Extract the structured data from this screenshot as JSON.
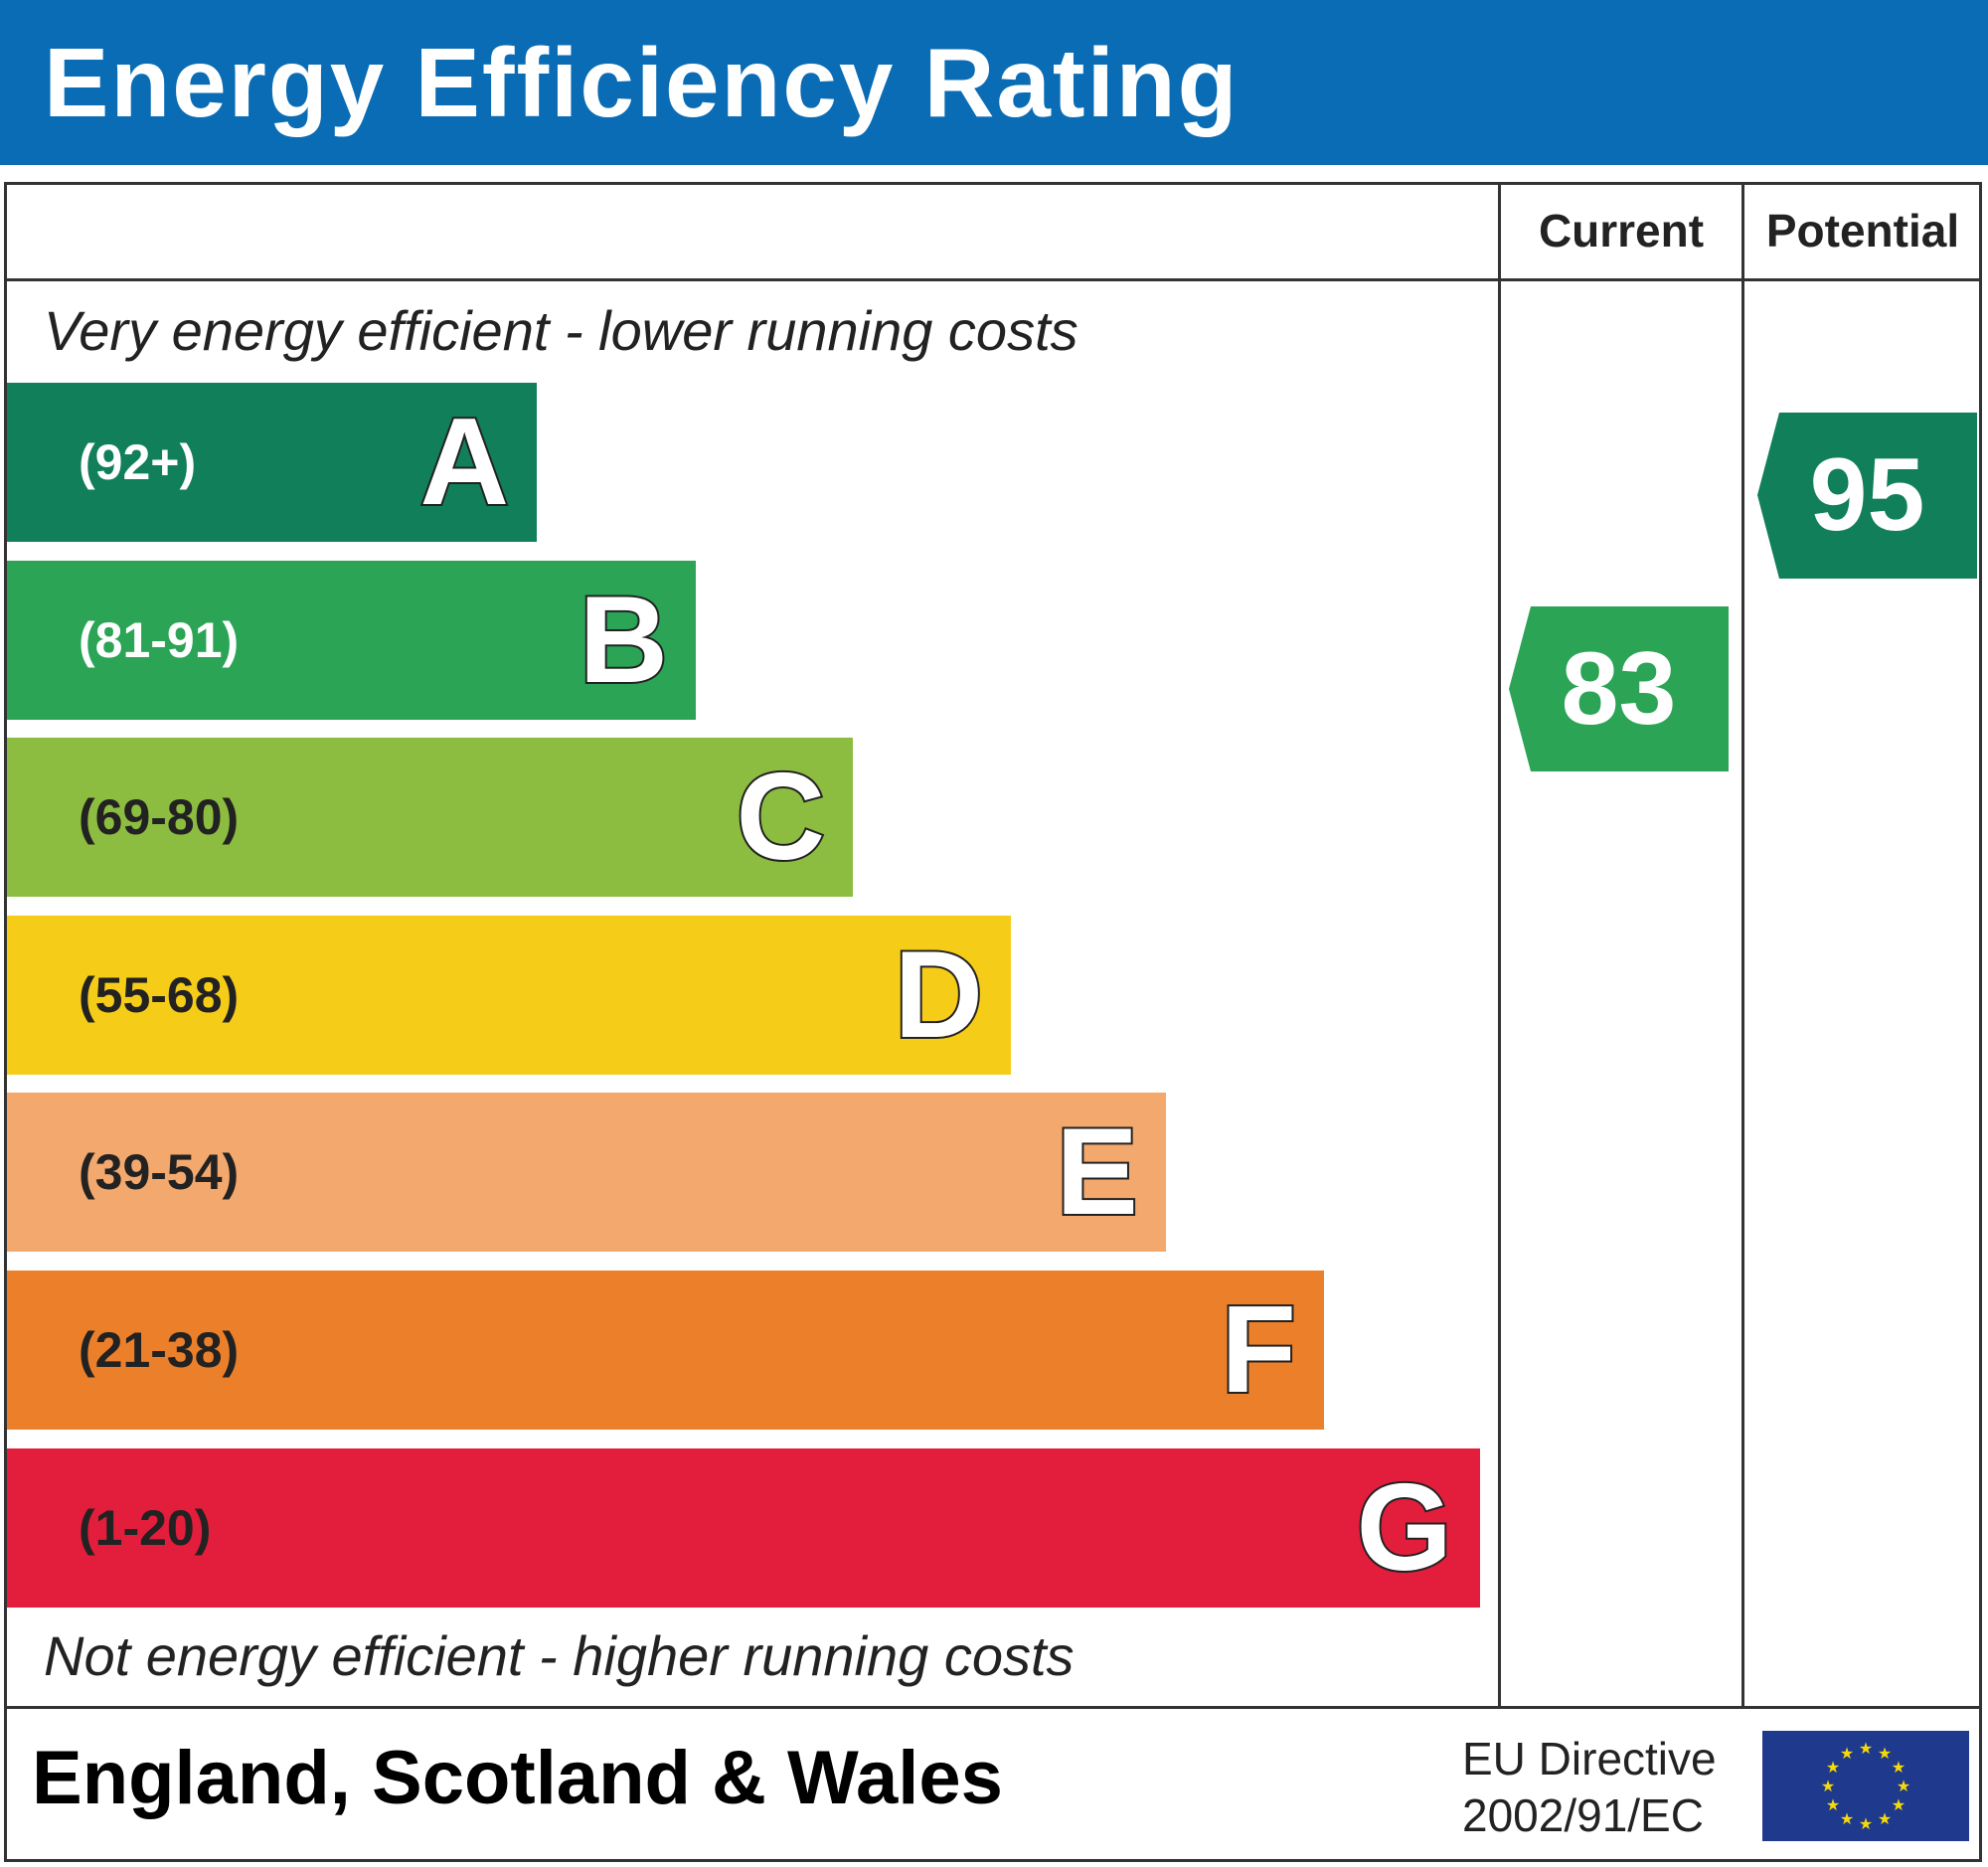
{
  "header": {
    "title": "Energy Efficiency Rating"
  },
  "columns": {
    "current": "Current",
    "potential": "Potential"
  },
  "notes": {
    "top": "Very energy efficient - lower running costs",
    "bottom": "Not energy efficient - higher running costs"
  },
  "footer": {
    "region": "England, Scotland & Wales",
    "eu_line1": "EU Directive",
    "eu_line2": "2002/91/EC"
  },
  "colors": {
    "header": "#0a6cb4",
    "flag": "#1f3a8c",
    "stars": "#f5d90a"
  },
  "chart_data": {
    "type": "bar",
    "title": "Energy Efficiency Rating",
    "categories": [
      "A",
      "B",
      "C",
      "D",
      "E",
      "F",
      "G"
    ],
    "ranges": [
      "(92+)",
      "(81-91)",
      "(69-80)",
      "(55-68)",
      "(39-54)",
      "(21-38)",
      "(1-20)"
    ],
    "colors": [
      "#107f5a",
      "#2ba456",
      "#8cbd40",
      "#f5cc18",
      "#f3a86d",
      "#ec7f2a",
      "#e31d3c"
    ],
    "range_text_colors": [
      "#ffffff",
      "#ffffff",
      "#222222",
      "#222222",
      "#222222",
      "#222222",
      "#222222"
    ],
    "current": {
      "label": "Current",
      "value": 83,
      "band": "B",
      "color": "#2ba456"
    },
    "potential": {
      "label": "Potential",
      "value": 95,
      "band": "A",
      "color": "#107f5a"
    }
  }
}
